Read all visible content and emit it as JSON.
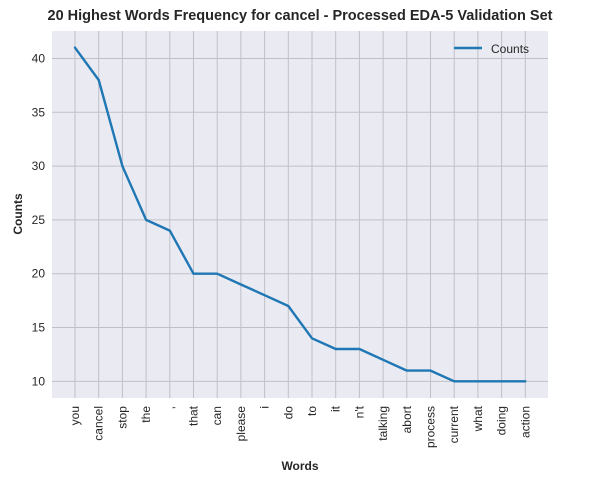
{
  "chart_data": {
    "type": "line",
    "title": "20 Highest Words Frequency for cancel - Processed EDA-5 Validation Set",
    "xlabel": "Words",
    "ylabel": "Counts",
    "categories": [
      "you",
      "cancel",
      "stop",
      "the",
      ",",
      "that",
      "can",
      "please",
      "i",
      "do",
      "to",
      "it",
      "n't",
      "talking",
      "abort",
      "process",
      "current",
      "what",
      "doing",
      "action"
    ],
    "series": [
      {
        "name": "Counts",
        "values": [
          41,
          38,
          30,
          25,
          24,
          20,
          20,
          19,
          18,
          17,
          14,
          13,
          13,
          12,
          11,
          11,
          10,
          10,
          10,
          10
        ]
      }
    ],
    "ylim": [
      8.45,
      42.55
    ],
    "yticks": [
      10,
      15,
      20,
      25,
      30,
      35,
      40
    ],
    "grid": true,
    "legend_position": "top-right",
    "colors": {
      "line": "#1f77b4",
      "background": "#eaeaf2",
      "grid": "#c0c0c8"
    }
  }
}
